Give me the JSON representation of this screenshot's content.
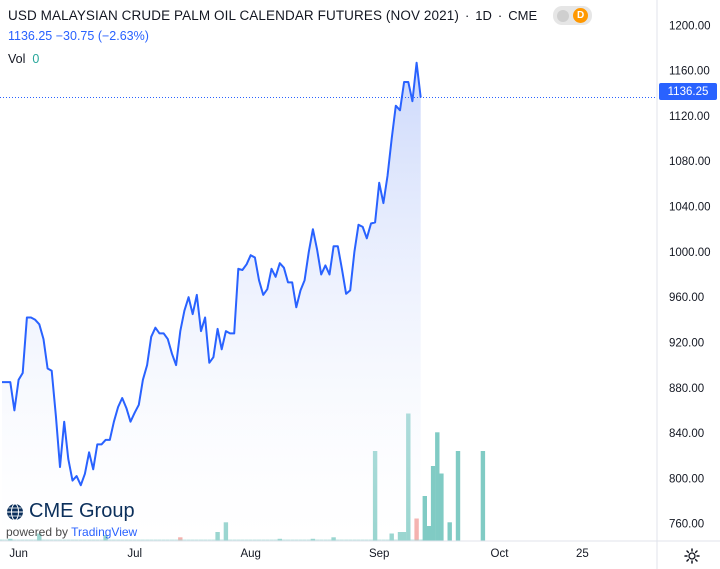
{
  "legend": {
    "title": "USD MALAYSIAN CRUDE PALM OIL CALENDAR FUTURES (NOV 2021)",
    "interval": "1D",
    "exchange": "CME",
    "badge": "D",
    "last": "1136.25",
    "change": "−30.75",
    "change_pct": "(−2.63%)",
    "vol_label": "Vol",
    "vol_value": "0"
  },
  "price_tag": "1136.25",
  "logo": {
    "brand": "CME Group",
    "powered_by": "powered by",
    "provider": "TradingView"
  },
  "colors": {
    "line": "#2962ff",
    "area_top": "#c9d6fb",
    "area_bottom": "#ffffff",
    "vol_up": "#80cbc4",
    "vol_down": "#f29e9a",
    "price_tag": "#2962ff"
  },
  "icons": [
    "cme-globe-icon",
    "gear-icon"
  ],
  "chart_data": {
    "type": "area",
    "ylim": [
      750,
      1210
    ],
    "yticks": [
      "1200.00",
      "1160.00",
      "1120.00",
      "1080.00",
      "1040.00",
      "1000.00",
      "960.00",
      "920.00",
      "880.00",
      "840.00",
      "800.00",
      "760.00"
    ],
    "ytick_values": [
      1200,
      1160,
      1120,
      1080,
      1040,
      1000,
      960,
      920,
      880,
      840,
      800,
      760
    ],
    "xticks": [
      {
        "label": "Jun",
        "day": 4
      },
      {
        "label": "Jul",
        "day": 32
      },
      {
        "label": "Aug",
        "day": 60
      },
      {
        "label": "Sep",
        "day": 91
      },
      {
        "label": "Oct",
        "day": 120
      },
      {
        "label": "25",
        "day": 140
      }
    ],
    "xlim": [
      0,
      158
    ],
    "series": [
      {
        "values": [
          [
            0,
            885
          ],
          [
            1,
            885
          ],
          [
            2,
            885
          ],
          [
            3,
            860
          ],
          [
            4,
            887
          ],
          [
            5,
            893
          ],
          [
            6,
            942
          ],
          [
            7,
            942
          ],
          [
            8,
            940
          ],
          [
            9,
            936
          ],
          [
            10,
            923
          ],
          [
            11,
            897
          ],
          [
            12,
            895
          ],
          [
            13,
            855
          ],
          [
            14,
            810
          ],
          [
            15,
            850
          ],
          [
            16,
            817
          ],
          [
            17,
            798
          ],
          [
            18,
            802
          ],
          [
            19,
            794
          ],
          [
            20,
            804
          ],
          [
            21,
            823
          ],
          [
            22,
            808
          ],
          [
            23,
            830
          ],
          [
            24,
            830
          ],
          [
            25,
            834
          ],
          [
            26,
            834
          ],
          [
            27,
            850
          ],
          [
            28,
            863
          ],
          [
            29,
            871
          ],
          [
            30,
            862
          ],
          [
            31,
            850
          ],
          [
            32,
            858
          ],
          [
            33,
            865
          ],
          [
            34,
            887
          ],
          [
            35,
            900
          ],
          [
            36,
            925
          ],
          [
            37,
            933
          ],
          [
            38,
            928
          ],
          [
            39,
            928
          ],
          [
            40,
            923
          ],
          [
            41,
            910
          ],
          [
            42,
            900
          ],
          [
            43,
            930
          ],
          [
            44,
            948
          ],
          [
            45,
            960
          ],
          [
            46,
            945
          ],
          [
            47,
            962
          ],
          [
            48,
            930
          ],
          [
            49,
            942
          ],
          [
            50,
            902
          ],
          [
            51,
            907
          ],
          [
            52,
            932
          ],
          [
            53,
            914
          ],
          [
            54,
            930
          ],
          [
            55,
            928
          ],
          [
            56,
            928
          ],
          [
            57,
            985
          ],
          [
            58,
            984
          ],
          [
            59,
            989
          ],
          [
            60,
            997
          ],
          [
            61,
            995
          ],
          [
            62,
            975
          ],
          [
            63,
            962
          ],
          [
            64,
            967
          ],
          [
            65,
            985
          ],
          [
            66,
            978
          ],
          [
            67,
            990
          ],
          [
            68,
            986
          ],
          [
            69,
            973
          ],
          [
            70,
            973
          ],
          [
            71,
            951
          ],
          [
            72,
            966
          ],
          [
            73,
            975
          ],
          [
            74,
            1000
          ],
          [
            75,
            1020
          ],
          [
            76,
            1002
          ],
          [
            77,
            980
          ],
          [
            78,
            988
          ],
          [
            79,
            980
          ],
          [
            80,
            1005
          ],
          [
            81,
            1005
          ],
          [
            82,
            985
          ],
          [
            83,
            963
          ],
          [
            84,
            966
          ],
          [
            85,
            1000
          ],
          [
            86,
            1024
          ],
          [
            87,
            1022
          ],
          [
            88,
            1012
          ],
          [
            89,
            1025
          ],
          [
            90,
            1026
          ],
          [
            91,
            1061
          ],
          [
            92,
            1043
          ],
          [
            93,
            1067
          ],
          [
            94,
            1100
          ],
          [
            95,
            1129
          ],
          [
            96,
            1125
          ],
          [
            97,
            1150
          ],
          [
            98,
            1150
          ],
          [
            99,
            1133
          ],
          [
            100,
            1167
          ],
          [
            101,
            1136.25
          ]
        ]
      }
    ],
    "volume": [
      {
        "day": 2,
        "value": 3,
        "dir": "up"
      },
      {
        "day": 9,
        "value": 10,
        "dir": "up"
      },
      {
        "day": 25,
        "value": 8,
        "dir": "up"
      },
      {
        "day": 43,
        "value": 5,
        "dir": "down"
      },
      {
        "day": 52,
        "value": 12,
        "dir": "up"
      },
      {
        "day": 54,
        "value": 25,
        "dir": "up"
      },
      {
        "day": 67,
        "value": 3,
        "dir": "up"
      },
      {
        "day": 75,
        "value": 3,
        "dir": "up"
      },
      {
        "day": 80,
        "value": 5,
        "dir": "up"
      },
      {
        "day": 90,
        "value": 120,
        "dir": "up"
      },
      {
        "day": 94,
        "value": 10,
        "dir": "up"
      },
      {
        "day": 96,
        "value": 12,
        "dir": "up"
      },
      {
        "day": 97,
        "value": 12,
        "dir": "up"
      },
      {
        "day": 98,
        "value": 170,
        "dir": "up"
      },
      {
        "day": 100,
        "value": 30,
        "dir": "down"
      },
      {
        "day": 102,
        "value": 60,
        "dir": "up"
      },
      {
        "day": 103,
        "value": 20,
        "dir": "up"
      },
      {
        "day": 104,
        "value": 100,
        "dir": "up"
      },
      {
        "day": 105,
        "value": 145,
        "dir": "up"
      },
      {
        "day": 106,
        "value": 90,
        "dir": "up"
      },
      {
        "day": 108,
        "value": 25,
        "dir": "up"
      },
      {
        "day": 110,
        "value": 120,
        "dir": "up"
      },
      {
        "day": 116,
        "value": 120,
        "dir": "up"
      }
    ]
  }
}
